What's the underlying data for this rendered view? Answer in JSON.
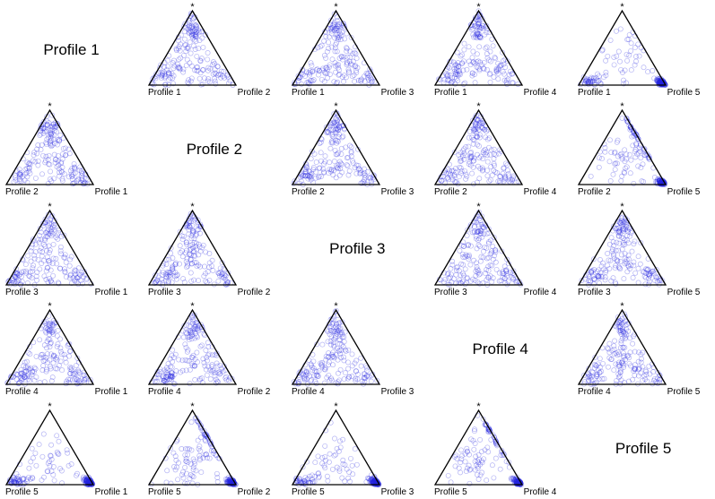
{
  "chart_data": {
    "type": "scatter",
    "subtype": "ternary-matrix",
    "profiles": [
      "Profile 1",
      "Profile 2",
      "Profile 3",
      "Profile 4",
      "Profile 5"
    ],
    "apex_label": "*",
    "marker": "open-circle",
    "point_color": "#2626e0",
    "edge_color": "#000000",
    "grid": false,
    "density_notes": {
      "1-2": "spread, heavier near top apex and lower corners",
      "1-5": "concentrated at Profile 5 corner",
      "2-5": "concentrated at Profile 5 corner with streak up left edge",
      "5-1": "concentrated at Profile 5 corner",
      "5-2": "concentrated at Profile 5 corner, streak on right edge",
      "5-3": "concentrated at Profile 5 corner",
      "5-4": "concentrated at Profile 5 corner, streak on right edge"
    }
  },
  "matrix": [
    [
      {
        "diag": true,
        "label": "Profile 1"
      },
      {
        "left": "Profile 1",
        "right": "Profile 2",
        "apex": "*"
      },
      {
        "left": "Profile 1",
        "right": "Profile 3",
        "apex": "*"
      },
      {
        "left": "Profile 1",
        "right": "Profile 4",
        "apex": "*"
      },
      {
        "left": "Profile 1",
        "right": "Profile 5",
        "apex": "*"
      }
    ],
    [
      {
        "left": "Profile 2",
        "right": "Profile 1",
        "apex": "*"
      },
      {
        "diag": true,
        "label": "Profile 2"
      },
      {
        "left": "Profile 2",
        "right": "Profile 3",
        "apex": "*"
      },
      {
        "left": "Profile 2",
        "right": "Profile 4",
        "apex": "*"
      },
      {
        "left": "Profile 2",
        "right": "Profile 5",
        "apex": "*"
      }
    ],
    [
      {
        "left": "Profile 3",
        "right": "Profile 1",
        "apex": "*"
      },
      {
        "left": "Profile 3",
        "right": "Profile 2",
        "apex": "*"
      },
      {
        "diag": true,
        "label": "Profile 3"
      },
      {
        "left": "Profile 3",
        "right": "Profile 4",
        "apex": "*"
      },
      {
        "left": "Profile 3",
        "right": "Profile 5",
        "apex": "*"
      }
    ],
    [
      {
        "left": "Profile 4",
        "right": "Profile 1",
        "apex": "*"
      },
      {
        "left": "Profile 4",
        "right": "Profile 2",
        "apex": "*"
      },
      {
        "left": "Profile 4",
        "right": "Profile 3",
        "apex": "*"
      },
      {
        "diag": true,
        "label": "Profile 4"
      },
      {
        "left": "Profile 4",
        "right": "Profile 5",
        "apex": "*"
      }
    ],
    [
      {
        "left": "Profile 5",
        "right": "Profile 1",
        "apex": "*"
      },
      {
        "left": "Profile 5",
        "right": "Profile 2",
        "apex": "*"
      },
      {
        "left": "Profile 5",
        "right": "Profile 3",
        "apex": "*"
      },
      {
        "left": "Profile 5",
        "right": "Profile 4",
        "apex": "*"
      },
      {
        "diag": true,
        "label": "Profile 5"
      }
    ]
  ]
}
